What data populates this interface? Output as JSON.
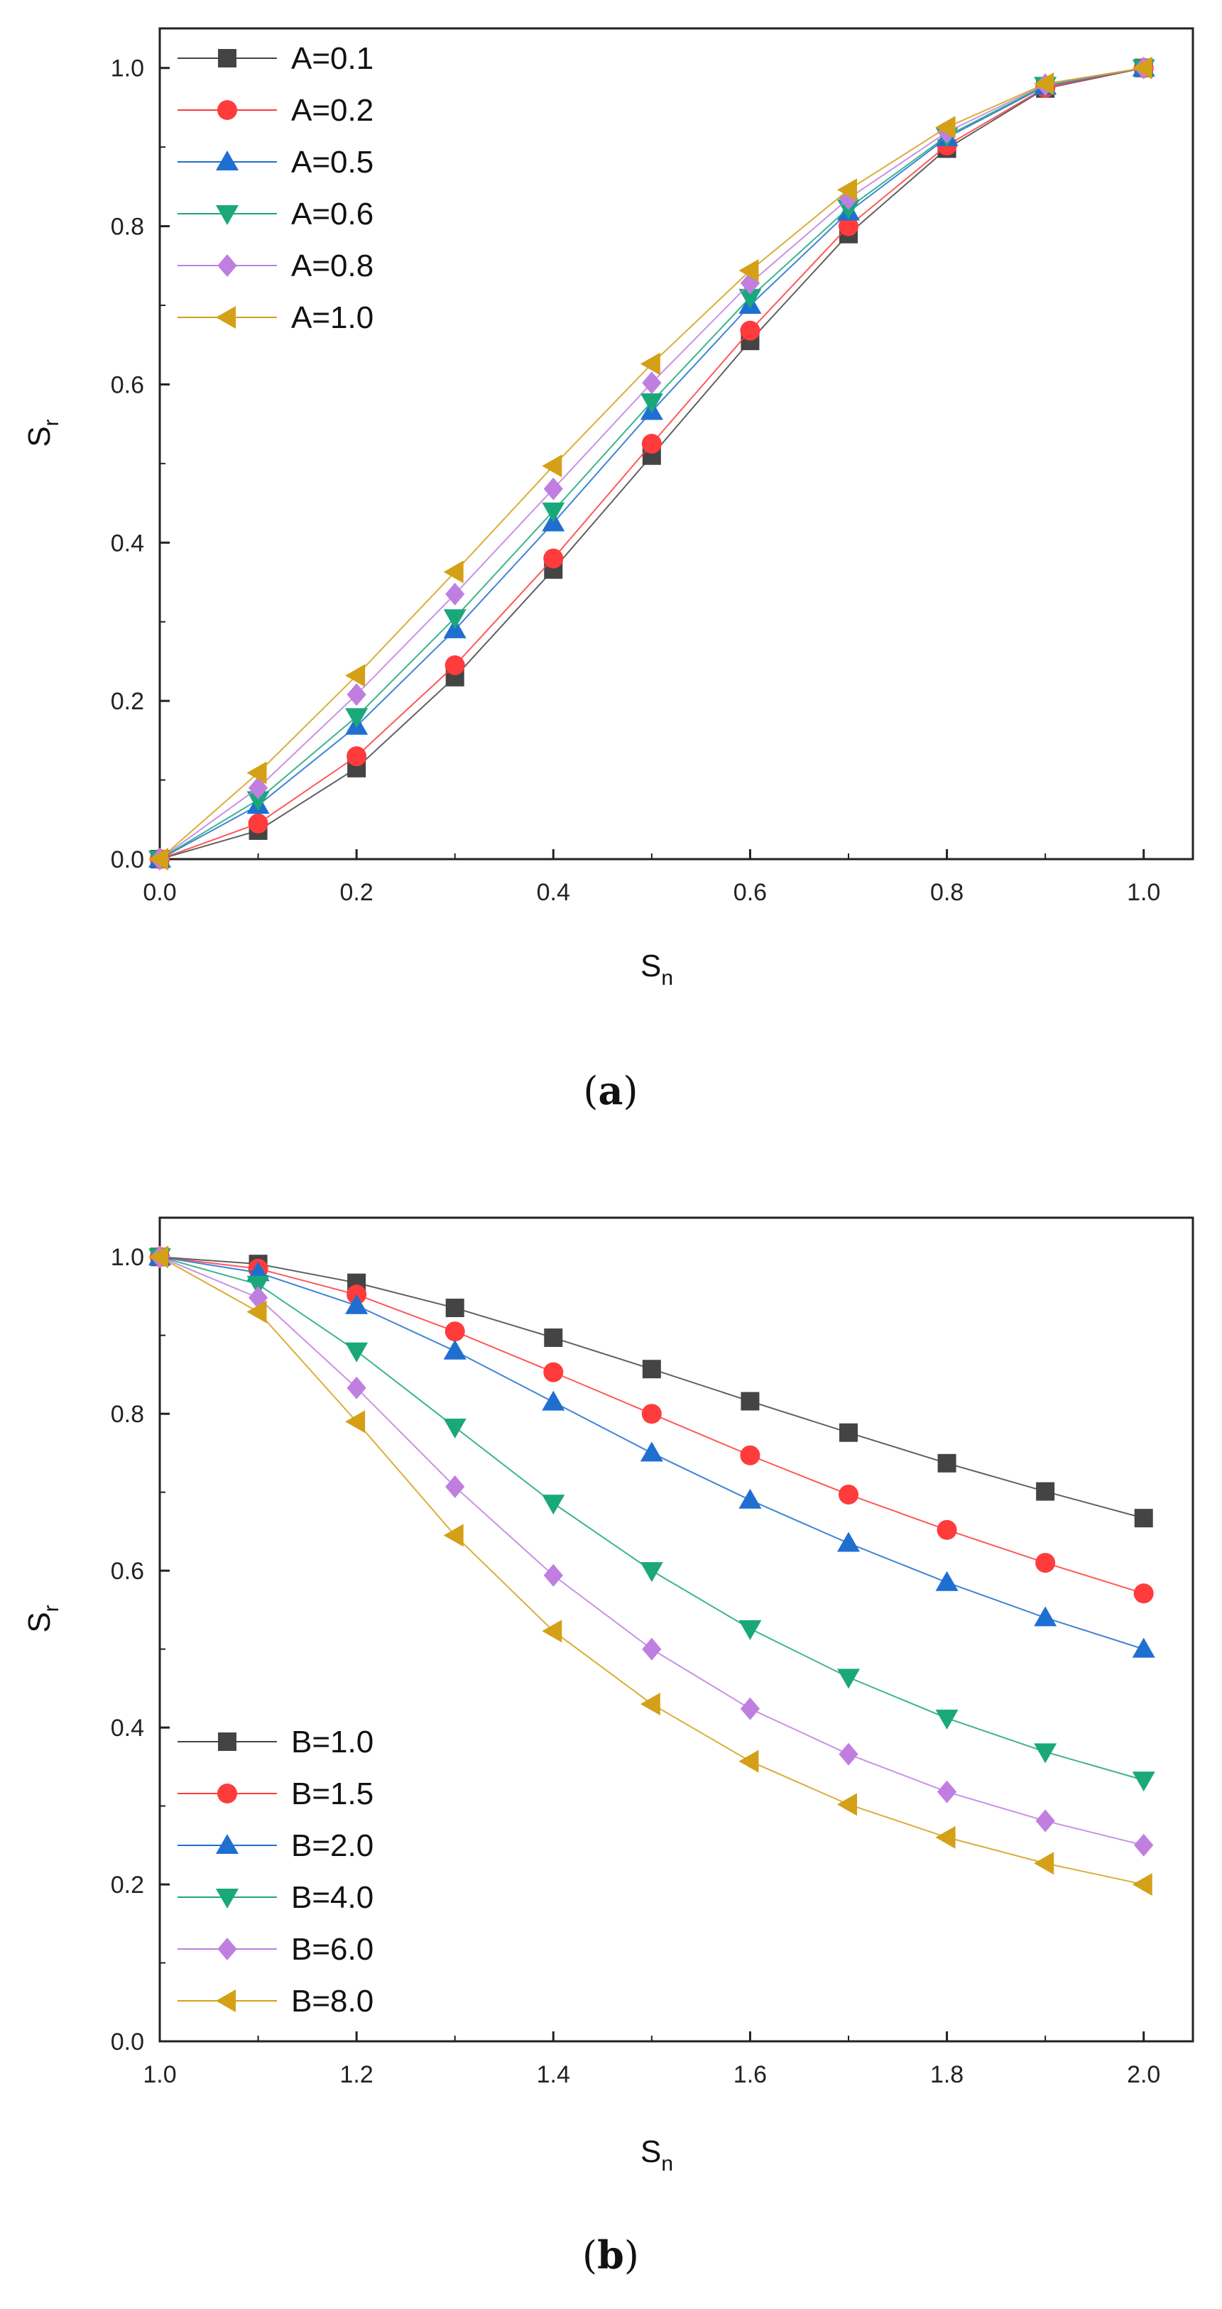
{
  "chart_data": [
    {
      "type": "line",
      "caption_prefix": "(",
      "caption_letter": "a",
      "caption_suffix": ")",
      "title": "",
      "xlabel": "S",
      "xlabel_sub": "n",
      "ylabel": "S",
      "ylabel_sub": "r",
      "xlim": [
        0.0,
        1.05
      ],
      "ylim": [
        0.0,
        1.05
      ],
      "xticks": [
        "0.0",
        "0.2",
        "0.4",
        "0.6",
        "0.8",
        "1.0"
      ],
      "yticks": [
        "0.0",
        "0.2",
        "0.4",
        "0.6",
        "0.8",
        "1.0"
      ],
      "grid": false,
      "legend_position": "top-left",
      "x": [
        0.0,
        0.1,
        0.2,
        0.3,
        0.4,
        0.5,
        0.6,
        0.7,
        0.8,
        0.9,
        1.0
      ],
      "series": [
        {
          "name": "A=0.1",
          "color": "#444444",
          "marker": "square",
          "values": [
            0.0,
            0.036,
            0.115,
            0.23,
            0.366,
            0.51,
            0.655,
            0.79,
            0.898,
            0.974,
            1.0
          ]
        },
        {
          "name": "A=0.2",
          "color": "#ff3b3b",
          "marker": "circle",
          "values": [
            0.0,
            0.045,
            0.13,
            0.245,
            0.38,
            0.525,
            0.668,
            0.8,
            0.902,
            0.975,
            1.0
          ]
        },
        {
          "name": "A=0.5",
          "color": "#1f6fd1",
          "marker": "triangle-up",
          "values": [
            0.0,
            0.068,
            0.168,
            0.29,
            0.425,
            0.566,
            0.7,
            0.818,
            0.912,
            0.977,
            1.0
          ]
        },
        {
          "name": "A=0.6",
          "color": "#1aa87a",
          "marker": "triangle-down",
          "values": [
            0.0,
            0.075,
            0.18,
            0.305,
            0.44,
            0.578,
            0.71,
            0.823,
            0.914,
            0.978,
            1.0
          ]
        },
        {
          "name": "A=0.8",
          "color": "#c07fe0",
          "marker": "diamond",
          "values": [
            0.0,
            0.09,
            0.208,
            0.335,
            0.468,
            0.602,
            0.728,
            0.835,
            0.919,
            0.979,
            1.0
          ]
        },
        {
          "name": "A=1.0",
          "color": "#d4a017",
          "marker": "triangle-left",
          "values": [
            0.0,
            0.109,
            0.232,
            0.363,
            0.497,
            0.626,
            0.744,
            0.846,
            0.925,
            0.98,
            1.0
          ]
        }
      ]
    },
    {
      "type": "line",
      "caption_prefix": "(",
      "caption_letter": "b",
      "caption_suffix": ")",
      "title": "",
      "xlabel": "S",
      "xlabel_sub": "n",
      "ylabel": "S",
      "ylabel_sub": "r",
      "xlim": [
        1.0,
        2.05
      ],
      "ylim": [
        0.0,
        1.05
      ],
      "xticks": [
        "1.0",
        "1.2",
        "1.4",
        "1.6",
        "1.8",
        "2.0"
      ],
      "yticks": [
        "0.0",
        "0.2",
        "0.4",
        "0.6",
        "0.8",
        "1.0"
      ],
      "grid": false,
      "legend_position": "bottom-left",
      "x": [
        1.0,
        1.1,
        1.2,
        1.3,
        1.4,
        1.5,
        1.6,
        1.7,
        1.8,
        1.9,
        2.0
      ],
      "series": [
        {
          "name": "B=1.0",
          "color": "#444444",
          "marker": "square",
          "values": [
            1.0,
            0.991,
            0.967,
            0.935,
            0.897,
            0.857,
            0.816,
            0.776,
            0.737,
            0.701,
            0.667
          ]
        },
        {
          "name": "B=1.5",
          "color": "#ff3b3b",
          "marker": "circle",
          "values": [
            1.0,
            0.985,
            0.952,
            0.905,
            0.853,
            0.8,
            0.747,
            0.697,
            0.652,
            0.61,
            0.571
          ]
        },
        {
          "name": "B=2.0",
          "color": "#1f6fd1",
          "marker": "triangle-up",
          "values": [
            1.0,
            0.98,
            0.938,
            0.88,
            0.815,
            0.75,
            0.69,
            0.635,
            0.585,
            0.54,
            0.5
          ]
        },
        {
          "name": "B=4.0",
          "color": "#1aa87a",
          "marker": "triangle-down",
          "values": [
            1.0,
            0.965,
            0.88,
            0.783,
            0.686,
            0.6,
            0.526,
            0.464,
            0.412,
            0.369,
            0.333
          ]
        },
        {
          "name": "B=6.0",
          "color": "#c07fe0",
          "marker": "diamond",
          "values": [
            1.0,
            0.948,
            0.833,
            0.707,
            0.594,
            0.5,
            0.424,
            0.366,
            0.318,
            0.281,
            0.25
          ]
        },
        {
          "name": "B=8.0",
          "color": "#d4a017",
          "marker": "triangle-left",
          "values": [
            1.0,
            0.93,
            0.79,
            0.645,
            0.523,
            0.43,
            0.357,
            0.302,
            0.26,
            0.227,
            0.2
          ]
        }
      ]
    }
  ]
}
